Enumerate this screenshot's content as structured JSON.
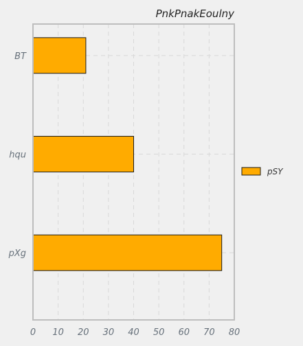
{
  "chart_data": {
    "type": "bar",
    "orientation": "horizontal",
    "title": "PnkPnakEoulny",
    "xlabel": "",
    "ylabel": "",
    "categories": [
      "BT",
      "hqu",
      "pXg"
    ],
    "series": [
      {
        "name": "pSY",
        "values": [
          21,
          40,
          75
        ],
        "color": "#ffab00"
      }
    ],
    "xlim": [
      0,
      80
    ],
    "xticks": [
      "0",
      "10",
      "20",
      "30",
      "40",
      "50",
      "60",
      "70",
      "80"
    ],
    "grid": true,
    "legend_position": "right"
  }
}
